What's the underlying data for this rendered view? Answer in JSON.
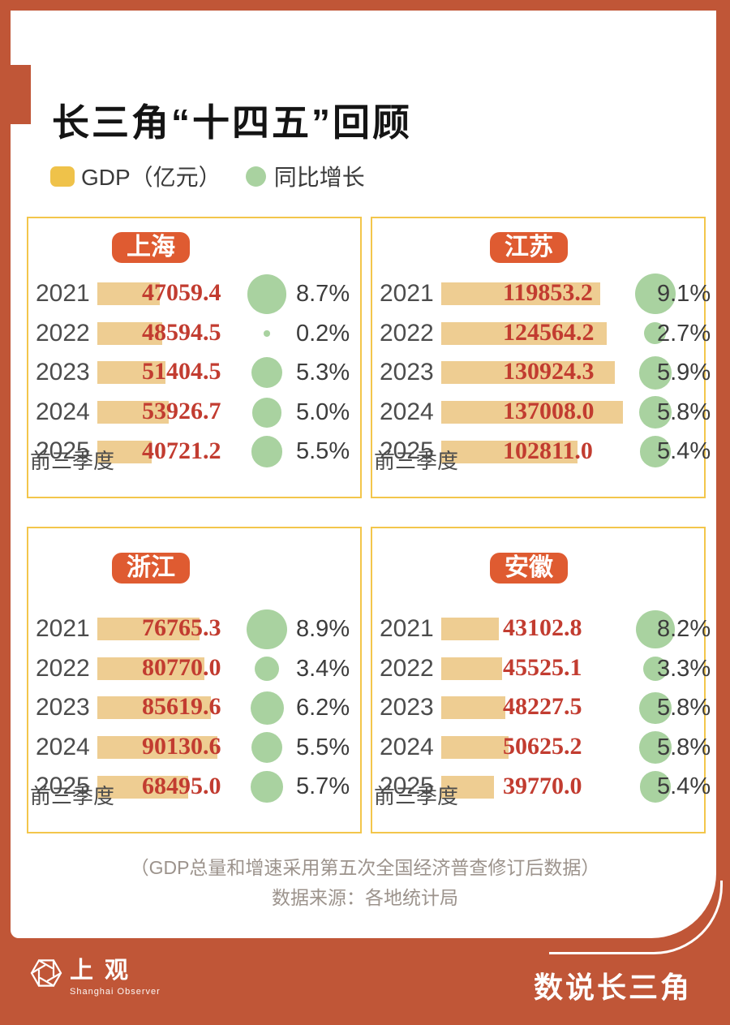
{
  "title": "长三角“十四五”回顾",
  "legend": {
    "gdp_label": "GDP（亿元）",
    "growth_label": "同比增长"
  },
  "panels": [
    {
      "region": "上海",
      "note": "前三季度",
      "years": [
        "2021",
        "2022",
        "2023",
        "2024",
        "2025"
      ],
      "gdp": [
        47059.4,
        48594.5,
        51404.5,
        53926.7,
        40721.2
      ],
      "growth": [
        8.7,
        0.2,
        5.3,
        5.0,
        5.5
      ]
    },
    {
      "region": "江苏",
      "note": "前三季度",
      "years": [
        "2021",
        "2022",
        "2023",
        "2024",
        "2025"
      ],
      "gdp": [
        119853.2,
        124564.2,
        130924.3,
        137008.0,
        102811.0
      ],
      "growth": [
        9.1,
        2.7,
        5.9,
        5.8,
        5.4
      ]
    },
    {
      "region": "浙江",
      "note": "前三季度",
      "years": [
        "2021",
        "2022",
        "2023",
        "2024",
        "2025"
      ],
      "gdp": [
        76765.3,
        80770.0,
        85619.6,
        90130.6,
        68495.0
      ],
      "growth": [
        8.9,
        3.4,
        6.2,
        5.5,
        5.7
      ]
    },
    {
      "region": "安徽",
      "note": "前三季度",
      "years": [
        "2021",
        "2022",
        "2023",
        "2024",
        "2025"
      ],
      "gdp": [
        43102.8,
        45525.1,
        48227.5,
        50625.2,
        39770.0
      ],
      "growth": [
        8.2,
        3.3,
        5.8,
        5.8,
        5.4
      ]
    }
  ],
  "footnotes": [
    "（GDP总量和增速采用第五次全国经济普查修订后数据）",
    "数据来源：各地统计局"
  ],
  "footer": {
    "logo_cn": "上观",
    "logo_en": "Shanghai Observer",
    "series_title": "数说长三角"
  },
  "colors": {
    "frame": "#C05637",
    "badge": "#DF5B31",
    "panel_border": "#F3C64B",
    "bar": "#EECD92",
    "legend_square": "#EFC24A",
    "growth_circle": "#A9D2A0",
    "value_red": "#C23C30",
    "footnote_gray": "#9C938C"
  },
  "chart_data": [
    {
      "type": "bar",
      "title": "上海",
      "categories": [
        "2021",
        "2022",
        "2023",
        "2024",
        "2025前三季度"
      ],
      "series": [
        {
          "name": "GDP（亿元）",
          "values": [
            47059.4,
            48594.5,
            51404.5,
            53926.7,
            40721.2
          ]
        },
        {
          "name": "同比增长（%）",
          "values": [
            8.7,
            0.2,
            5.3,
            5.0,
            5.5
          ]
        }
      ],
      "layout": "horizontal bars + proportional bubbles, shared bar scale across panels"
    },
    {
      "type": "bar",
      "title": "江苏",
      "categories": [
        "2021",
        "2022",
        "2023",
        "2024",
        "2025前三季度"
      ],
      "series": [
        {
          "name": "GDP（亿元）",
          "values": [
            119853.2,
            124564.2,
            130924.3,
            137008.0,
            102811.0
          ]
        },
        {
          "name": "同比增长（%）",
          "values": [
            9.1,
            2.7,
            5.9,
            5.8,
            5.4
          ]
        }
      ],
      "layout": "horizontal bars + proportional bubbles, shared bar scale across panels"
    },
    {
      "type": "bar",
      "title": "浙江",
      "categories": [
        "2021",
        "2022",
        "2023",
        "2024",
        "2025前三季度"
      ],
      "series": [
        {
          "name": "GDP（亿元）",
          "values": [
            76765.3,
            80770.0,
            85619.6,
            90130.6,
            68495.0
          ]
        },
        {
          "name": "同比增长（%）",
          "values": [
            8.9,
            3.4,
            6.2,
            5.5,
            5.7
          ]
        }
      ],
      "layout": "horizontal bars + proportional bubbles, shared bar scale across panels"
    },
    {
      "type": "bar",
      "title": "安徽",
      "categories": [
        "2021",
        "2022",
        "2023",
        "2024",
        "2025前三季度"
      ],
      "series": [
        {
          "name": "GDP（亿元）",
          "values": [
            43102.8,
            45525.1,
            48227.5,
            50625.2,
            39770.0
          ]
        },
        {
          "name": "同比增长（%）",
          "values": [
            8.2,
            3.3,
            5.8,
            5.8,
            5.4
          ]
        }
      ],
      "layout": "horizontal bars + proportional bubbles, shared bar scale across panels"
    }
  ]
}
